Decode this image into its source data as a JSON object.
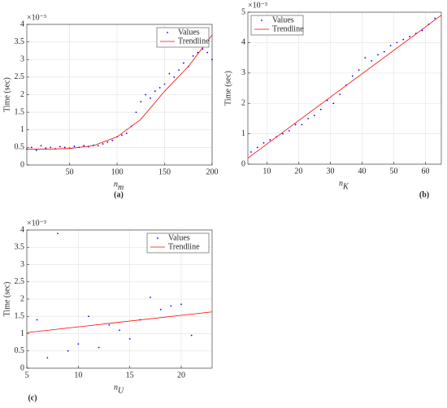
{
  "chart_data": [
    {
      "type": "scatter",
      "caption": "(a)",
      "ylabel": "Time (sec)",
      "y_scale_label": "×10⁻³",
      "xlabel": "n",
      "xlabel_subscript": "m",
      "xlim": [
        5,
        200
      ],
      "ylim": [
        0,
        4
      ],
      "xticks": [
        50,
        100,
        150,
        200
      ],
      "yticks": [
        0,
        0.5,
        1,
        1.5,
        2,
        2.5,
        3,
        3.5,
        4
      ],
      "grid": true,
      "legend": "upper right",
      "series": [
        {
          "name": "Values",
          "mode": "markers",
          "color": "#0000ff",
          "x": [
            5,
            10,
            15,
            20,
            25,
            30,
            35,
            40,
            45,
            50,
            55,
            60,
            65,
            70,
            75,
            80,
            85,
            90,
            95,
            100,
            105,
            110,
            115,
            120,
            125,
            130,
            135,
            140,
            145,
            150,
            155,
            160,
            165,
            170,
            175,
            180,
            185,
            190,
            195,
            200
          ],
          "values": [
            0.45,
            0.5,
            0.42,
            0.55,
            0.48,
            0.5,
            0.46,
            0.52,
            0.5,
            0.48,
            0.53,
            0.5,
            0.55,
            0.52,
            0.56,
            0.55,
            0.6,
            0.65,
            0.7,
            0.8,
            0.85,
            0.9,
            1.1,
            1.5,
            1.8,
            2.0,
            1.9,
            2.1,
            2.2,
            2.3,
            2.6,
            2.5,
            2.7,
            2.9,
            2.8,
            3.1,
            3.2,
            3.3,
            3.2,
            3.0
          ]
        },
        {
          "name": "Trendline",
          "mode": "line",
          "color": "#ff0000",
          "x": [
            5,
            25,
            50,
            75,
            100,
            125,
            150,
            175,
            200
          ],
          "values": [
            0.45,
            0.45,
            0.47,
            0.55,
            0.8,
            1.3,
            2.1,
            2.8,
            3.7
          ]
        }
      ]
    },
    {
      "type": "scatter",
      "caption": "(b)",
      "ylabel": "Time (sec)",
      "y_scale_label": "×10⁻³",
      "xlabel": "n",
      "xlabel_subscript": "K",
      "xlim": [
        4,
        65
      ],
      "ylim": [
        0,
        5
      ],
      "xticks": [
        10,
        20,
        30,
        40,
        50,
        60
      ],
      "yticks": [
        0,
        1,
        2,
        3,
        4,
        5
      ],
      "grid": true,
      "legend": "upper left",
      "series": [
        {
          "name": "Values",
          "mode": "markers",
          "color": "#0000ff",
          "x": [
            5,
            7,
            9,
            11,
            13,
            15,
            17,
            19,
            21,
            23,
            25,
            27,
            29,
            31,
            33,
            35,
            37,
            39,
            41,
            43,
            45,
            47,
            49,
            51,
            53,
            55,
            57,
            59,
            61,
            63
          ],
          "values": [
            0.4,
            0.55,
            0.7,
            0.8,
            0.9,
            1.0,
            1.1,
            1.3,
            1.3,
            1.5,
            1.6,
            1.8,
            2.1,
            2.0,
            2.3,
            2.6,
            2.9,
            3.1,
            3.5,
            3.4,
            3.6,
            3.7,
            3.9,
            4.0,
            4.1,
            4.2,
            4.3,
            4.4,
            4.6,
            4.8
          ]
        },
        {
          "name": "Trendline",
          "mode": "line",
          "color": "#ff0000",
          "x": [
            4,
            65
          ],
          "values": [
            0.2,
            4.9
          ]
        }
      ]
    },
    {
      "type": "scatter",
      "caption": "(c)",
      "ylabel": "Time (sec)",
      "y_scale_label": "×10⁻³",
      "xlabel": "n",
      "xlabel_subscript": "U",
      "xlim": [
        5,
        23
      ],
      "ylim": [
        0,
        4
      ],
      "xticks": [
        5,
        10,
        15,
        20
      ],
      "yticks": [
        0,
        0.5,
        1,
        1.5,
        2,
        2.5,
        3,
        3.5,
        4
      ],
      "grid": true,
      "legend": "upper right",
      "series": [
        {
          "name": "Values",
          "mode": "markers",
          "color": "#0000ff",
          "x": [
            6,
            7,
            8,
            9,
            10,
            11,
            12,
            13,
            14,
            15,
            16,
            17,
            18,
            19,
            20,
            21
          ],
          "values": [
            1.4,
            0.3,
            3.9,
            0.5,
            0.7,
            1.5,
            0.6,
            1.25,
            1.1,
            0.85,
            1.4,
            2.05,
            1.7,
            1.8,
            1.85,
            0.95
          ]
        },
        {
          "name": "Trendline",
          "mode": "line",
          "color": "#ff0000",
          "x": [
            5,
            23
          ],
          "values": [
            1.03,
            1.63
          ]
        }
      ]
    }
  ]
}
